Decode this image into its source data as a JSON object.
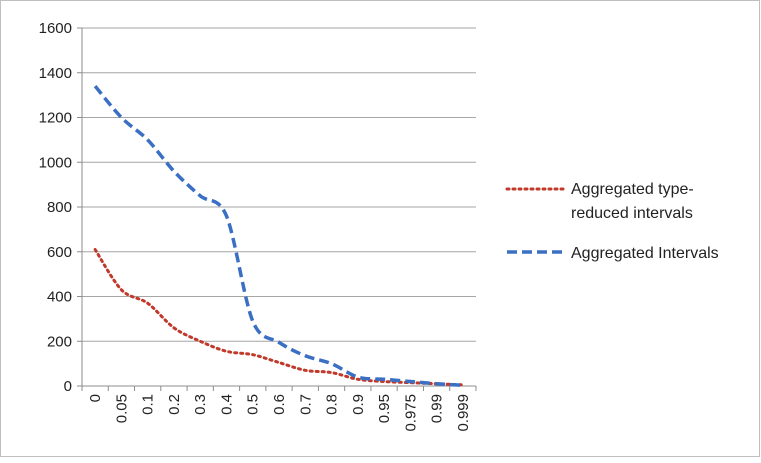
{
  "chart_data": {
    "type": "line",
    "categories": [
      "0",
      "0.05",
      "0.1",
      "0.2",
      "0.3",
      "0.4",
      "0.5",
      "0.6",
      "0.7",
      "0.8",
      "0.9",
      "0.95",
      "0.975",
      "0.99",
      "0.999"
    ],
    "ylim": [
      0,
      1600
    ],
    "yticks": [
      0,
      200,
      400,
      600,
      800,
      1000,
      1200,
      1400,
      1600
    ],
    "grid": true,
    "legend_position": "right",
    "series": [
      {
        "name": "Aggregated type-reduced intervals",
        "name_lines": [
          "Aggregated type-",
          "reduced intervals"
        ],
        "color": "#c0392b",
        "dash": "dotted",
        "values": [
          610,
          430,
          370,
          260,
          200,
          155,
          140,
          105,
          70,
          60,
          30,
          20,
          15,
          10,
          5
        ]
      },
      {
        "name": "Aggregated Intervals",
        "name_lines": [
          "Aggregated Intervals"
        ],
        "color": "#3a6fc4",
        "dash": "dashed",
        "values": [
          1340,
          1200,
          1100,
          960,
          850,
          760,
          290,
          195,
          135,
          100,
          40,
          30,
          20,
          10,
          3
        ]
      }
    ]
  }
}
